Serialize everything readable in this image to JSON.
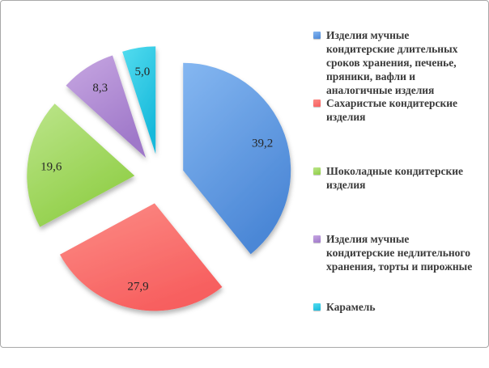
{
  "frame": {
    "background": "#ffffff",
    "border_color": "#a8a8a8"
  },
  "chart_data": {
    "type": "pie",
    "title": "",
    "legend_position": "right",
    "start_angle_deg": 0,
    "direction": "clockwise",
    "exploded": true,
    "decimal_separator": ",",
    "value_label_color": "#262626",
    "legend_text_color": "#3a3a3a",
    "slices": [
      {
        "label": "Изделия мучные кондитерские длительных сроков хранения, печенье, пряники, вафли и аналогичные изделия",
        "value": 39.2,
        "value_label": "39,2",
        "color": "#5b9bd5",
        "color_light": "#85b7f1",
        "color_dark": "#4b87d6"
      },
      {
        "label": "Сахаристые кондитерские изделия",
        "value": 27.9,
        "value_label": "27,9",
        "color": "#f96a6a",
        "color_light": "#fc8c86",
        "color_dark": "#f75f5f"
      },
      {
        "label": "Шоколадные кондитерские изделия",
        "value": 19.6,
        "value_label": "19,6",
        "color": "#a0d858",
        "color_light": "#bce58b",
        "color_dark": "#8fce45"
      },
      {
        "label": "Изделия мучные кондитерские недлительного хранения, торты и пирожные",
        "value": 8.3,
        "value_label": "8,3",
        "color": "#b491d6",
        "color_light": "#c7a7e2",
        "color_dark": "#9f78c9"
      },
      {
        "label": "Карамель",
        "value": 5.0,
        "value_label": "5,0",
        "color": "#2bc5de",
        "color_light": "#53dcef",
        "color_dark": "#17b9db"
      }
    ]
  }
}
